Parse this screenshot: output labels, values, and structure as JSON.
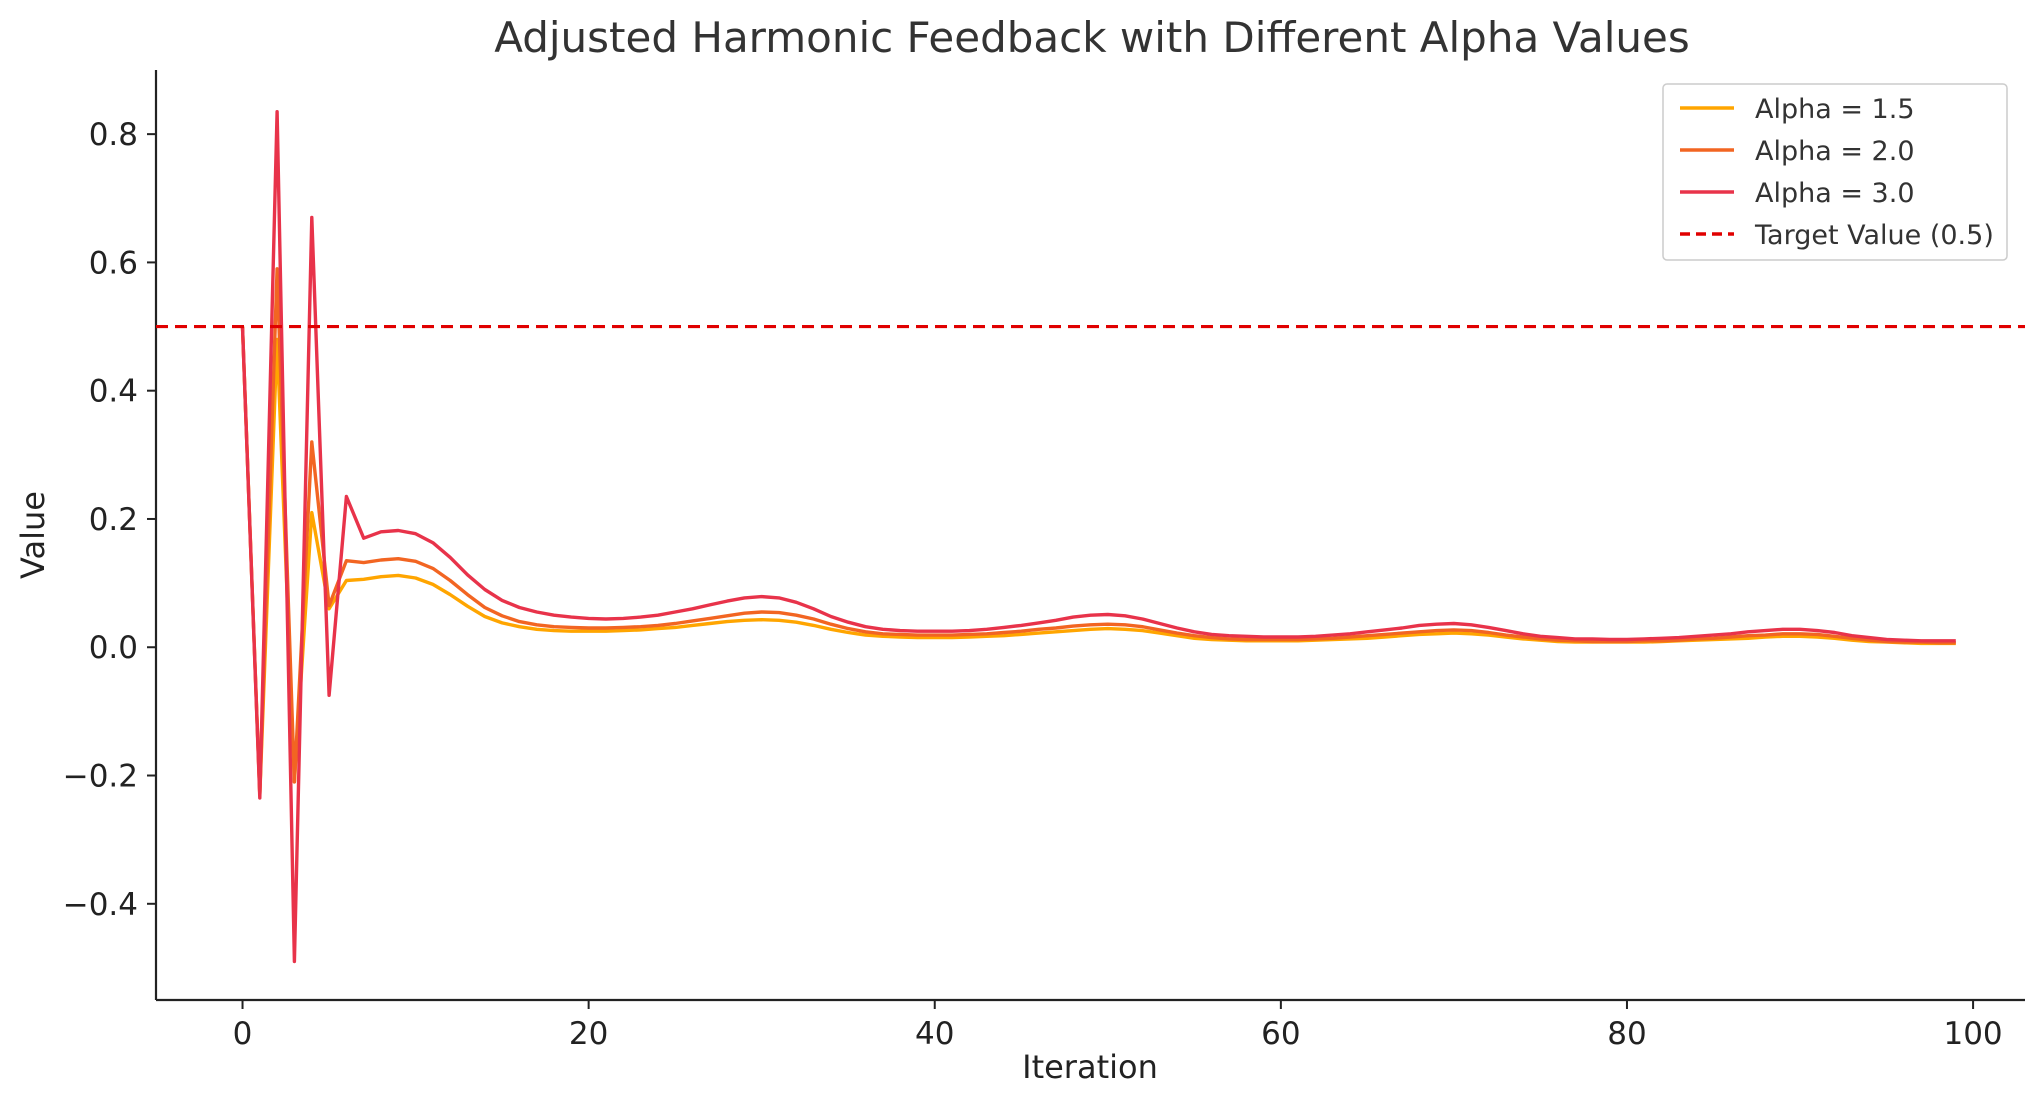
{
  "chart_data": {
    "type": "line",
    "title": "Adjusted Harmonic Feedback with Different Alpha Values",
    "xlabel": "Iteration",
    "ylabel": "Value",
    "xlim": [
      -5,
      103
    ],
    "ylim": [
      -0.55,
      0.9
    ],
    "xticks": [
      0,
      20,
      40,
      60,
      80,
      100
    ],
    "yticks": [
      -0.4,
      -0.2,
      0.0,
      0.2,
      0.4,
      0.6,
      0.8
    ],
    "xtick_labels": [
      "0",
      "20",
      "40",
      "60",
      "80",
      "100"
    ],
    "ytick_labels": [
      "−0.4",
      "−0.2",
      "0.0",
      "0.2",
      "0.4",
      "0.6",
      "0.8"
    ],
    "grid": false,
    "legend_position": "top-right",
    "series": [
      {
        "name": "Alpha = 1.5",
        "color": "#FFA500",
        "style": "solid",
        "x": [
          0,
          1,
          2,
          3,
          4,
          5,
          6,
          7,
          8,
          9,
          10,
          11,
          12,
          13,
          14,
          15,
          16,
          17,
          18,
          19,
          20,
          21,
          22,
          23,
          24,
          25,
          26,
          27,
          28,
          29,
          30,
          31,
          32,
          33,
          34,
          35,
          36,
          37,
          38,
          39,
          40,
          41,
          42,
          43,
          44,
          45,
          46,
          47,
          48,
          49,
          50,
          51,
          52,
          53,
          54,
          55,
          56,
          57,
          58,
          59,
          60,
          61,
          62,
          63,
          64,
          65,
          66,
          67,
          68,
          69,
          70,
          71,
          72,
          73,
          74,
          75,
          76,
          77,
          78,
          79,
          80,
          81,
          82,
          83,
          84,
          85,
          86,
          87,
          88,
          89,
          90,
          91,
          92,
          93,
          94,
          95,
          96,
          97,
          98,
          99
        ],
        "values": [
          0.5,
          -0.23,
          0.48,
          -0.21,
          0.21,
          0.06,
          0.104,
          0.106,
          0.11,
          0.112,
          0.108,
          0.098,
          0.082,
          0.064,
          0.048,
          0.038,
          0.032,
          0.028,
          0.026,
          0.025,
          0.025,
          0.025,
          0.026,
          0.027,
          0.029,
          0.031,
          0.034,
          0.037,
          0.04,
          0.042,
          0.043,
          0.042,
          0.039,
          0.034,
          0.028,
          0.023,
          0.019,
          0.017,
          0.016,
          0.015,
          0.015,
          0.015,
          0.016,
          0.017,
          0.018,
          0.02,
          0.022,
          0.024,
          0.026,
          0.028,
          0.029,
          0.028,
          0.026,
          0.022,
          0.018,
          0.014,
          0.012,
          0.011,
          0.01,
          0.01,
          0.01,
          0.01,
          0.011,
          0.012,
          0.013,
          0.014,
          0.016,
          0.018,
          0.02,
          0.021,
          0.022,
          0.021,
          0.019,
          0.016,
          0.013,
          0.011,
          0.009,
          0.008,
          0.008,
          0.008,
          0.008,
          0.008,
          0.009,
          0.01,
          0.011,
          0.012,
          0.013,
          0.014,
          0.016,
          0.017,
          0.017,
          0.016,
          0.014,
          0.011,
          0.009,
          0.008,
          0.007,
          0.006,
          0.006,
          0.006
        ]
      },
      {
        "name": "Alpha = 2.0",
        "color": "#F26522",
        "style": "solid",
        "x": [
          0,
          1,
          2,
          3,
          4,
          5,
          6,
          7,
          8,
          9,
          10,
          11,
          12,
          13,
          14,
          15,
          16,
          17,
          18,
          19,
          20,
          21,
          22,
          23,
          24,
          25,
          26,
          27,
          28,
          29,
          30,
          31,
          32,
          33,
          34,
          35,
          36,
          37,
          38,
          39,
          40,
          41,
          42,
          43,
          44,
          45,
          46,
          47,
          48,
          49,
          50,
          51,
          52,
          53,
          54,
          55,
          56,
          57,
          58,
          59,
          60,
          61,
          62,
          63,
          64,
          65,
          66,
          67,
          68,
          69,
          70,
          71,
          72,
          73,
          74,
          75,
          76,
          77,
          78,
          79,
          80,
          81,
          82,
          83,
          84,
          85,
          86,
          87,
          88,
          89,
          90,
          91,
          92,
          93,
          94,
          95,
          96,
          97,
          98,
          99
        ],
        "values": [
          0.5,
          -0.23,
          0.59,
          -0.21,
          0.32,
          0.065,
          0.135,
          0.132,
          0.136,
          0.138,
          0.134,
          0.123,
          0.104,
          0.082,
          0.062,
          0.049,
          0.04,
          0.035,
          0.032,
          0.031,
          0.03,
          0.03,
          0.031,
          0.032,
          0.034,
          0.037,
          0.041,
          0.045,
          0.049,
          0.053,
          0.055,
          0.054,
          0.05,
          0.044,
          0.036,
          0.029,
          0.024,
          0.021,
          0.02,
          0.019,
          0.019,
          0.019,
          0.02,
          0.021,
          0.023,
          0.025,
          0.028,
          0.03,
          0.033,
          0.035,
          0.036,
          0.035,
          0.032,
          0.027,
          0.022,
          0.018,
          0.015,
          0.013,
          0.012,
          0.012,
          0.012,
          0.012,
          0.013,
          0.014,
          0.016,
          0.018,
          0.02,
          0.022,
          0.024,
          0.026,
          0.027,
          0.026,
          0.023,
          0.019,
          0.016,
          0.013,
          0.011,
          0.01,
          0.009,
          0.009,
          0.009,
          0.01,
          0.01,
          0.011,
          0.013,
          0.014,
          0.016,
          0.018,
          0.019,
          0.021,
          0.021,
          0.02,
          0.017,
          0.014,
          0.011,
          0.009,
          0.008,
          0.008,
          0.007,
          0.007
        ]
      },
      {
        "name": "Alpha = 3.0",
        "color": "#E8334A",
        "style": "solid",
        "x": [
          0,
          1,
          2,
          3,
          4,
          5,
          6,
          7,
          8,
          9,
          10,
          11,
          12,
          13,
          14,
          15,
          16,
          17,
          18,
          19,
          20,
          21,
          22,
          23,
          24,
          25,
          26,
          27,
          28,
          29,
          30,
          31,
          32,
          33,
          34,
          35,
          36,
          37,
          38,
          39,
          40,
          41,
          42,
          43,
          44,
          45,
          46,
          47,
          48,
          49,
          50,
          51,
          52,
          53,
          54,
          55,
          56,
          57,
          58,
          59,
          60,
          61,
          62,
          63,
          64,
          65,
          66,
          67,
          68,
          69,
          70,
          71,
          72,
          73,
          74,
          75,
          76,
          77,
          78,
          79,
          80,
          81,
          82,
          83,
          84,
          85,
          86,
          87,
          88,
          89,
          90,
          91,
          92,
          93,
          94,
          95,
          96,
          97,
          98,
          99
        ],
        "values": [
          0.5,
          -0.235,
          0.835,
          -0.49,
          0.67,
          -0.075,
          0.235,
          0.17,
          0.18,
          0.182,
          0.177,
          0.163,
          0.14,
          0.113,
          0.09,
          0.073,
          0.062,
          0.055,
          0.05,
          0.047,
          0.045,
          0.044,
          0.045,
          0.047,
          0.05,
          0.055,
          0.06,
          0.066,
          0.072,
          0.077,
          0.079,
          0.077,
          0.07,
          0.06,
          0.048,
          0.039,
          0.032,
          0.028,
          0.026,
          0.025,
          0.025,
          0.025,
          0.026,
          0.028,
          0.031,
          0.034,
          0.038,
          0.042,
          0.047,
          0.05,
          0.051,
          0.049,
          0.044,
          0.037,
          0.03,
          0.024,
          0.02,
          0.018,
          0.017,
          0.016,
          0.016,
          0.016,
          0.017,
          0.019,
          0.021,
          0.024,
          0.027,
          0.03,
          0.034,
          0.036,
          0.037,
          0.035,
          0.031,
          0.026,
          0.021,
          0.017,
          0.015,
          0.013,
          0.013,
          0.012,
          0.012,
          0.013,
          0.014,
          0.015,
          0.017,
          0.019,
          0.021,
          0.024,
          0.026,
          0.028,
          0.028,
          0.026,
          0.023,
          0.018,
          0.015,
          0.012,
          0.011,
          0.01,
          0.01,
          0.01
        ]
      },
      {
        "name": "Target Value (0.5)",
        "color": "#E00000",
        "style": "dashed",
        "y": 0.5
      }
    ]
  }
}
